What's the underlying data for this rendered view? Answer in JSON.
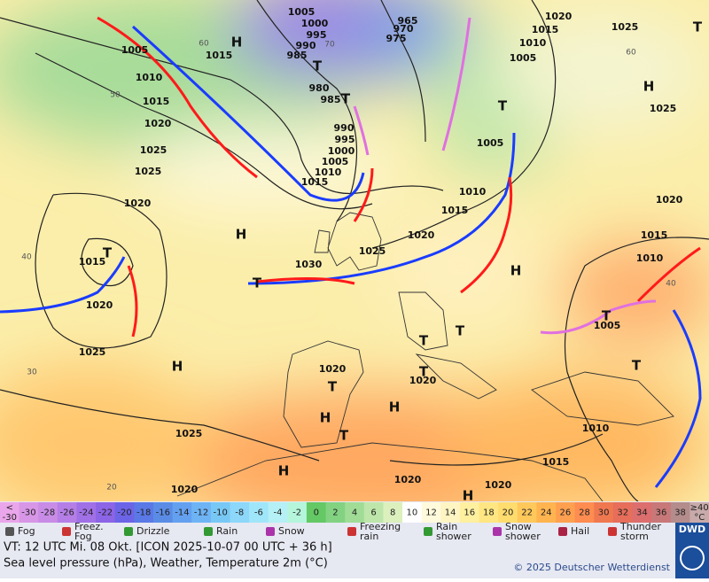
{
  "map": {
    "pressure_labels": [
      1005,
      1000,
      995,
      990,
      985,
      965,
      970,
      975,
      1020,
      1015,
      1025,
      1010,
      1005,
      1005,
      1015,
      1010,
      1015,
      1020,
      1025,
      1025,
      1020,
      980,
      985,
      990,
      995,
      1000,
      1005,
      1010,
      1015,
      1005,
      1010,
      1015,
      1020,
      1025,
      1030,
      1020,
      1015,
      1010,
      1005,
      1015,
      1020,
      1025,
      1020,
      1020,
      1025,
      1010,
      1015,
      1020,
      1020,
      1020,
      1025
    ],
    "centers": [
      "H",
      "T",
      "T",
      "H",
      "H",
      "T",
      "T",
      "T",
      "H",
      "H",
      "T",
      "T",
      "T",
      "T",
      "H",
      "H",
      "T",
      "T",
      "H",
      "H",
      "T",
      "T"
    ],
    "temperature_labels": [
      60,
      50,
      40,
      30,
      20,
      60,
      40,
      70
    ]
  },
  "colorbar": {
    "below_label": [
      "<",
      "-30"
    ],
    "values": [
      -30,
      -28,
      -26,
      -24,
      -22,
      -20,
      -18,
      -16,
      -14,
      -12,
      -10,
      -8,
      -6,
      -4,
      -2,
      0,
      2,
      4,
      6,
      8,
      10,
      12,
      14,
      16,
      18,
      20,
      22,
      24,
      26,
      28,
      30,
      32,
      34,
      36,
      38
    ],
    "above_label": [
      "≥40",
      "°C"
    ],
    "colors": [
      "#eaa6ea",
      "#d896e6",
      "#c88ce6",
      "#b47ee6",
      "#a070e6",
      "#8c64e6",
      "#6c64e6",
      "#5a78e6",
      "#5a8ce6",
      "#64a0f0",
      "#6eb4f5",
      "#78c8f5",
      "#8cd7fa",
      "#a0e6fa",
      "#b4f0f5",
      "#b4f5dc",
      "#64c864",
      "#82d282",
      "#a0dc96",
      "#bee6aa",
      "#dcf0be",
      "#ffffff",
      "#fffadc",
      "#fff5c3",
      "#fff0a0",
      "#ffe682",
      "#ffdc6e",
      "#ffc85a",
      "#ffb450",
      "#ffa050",
      "#ff8c50",
      "#f07850",
      "#e66e5a",
      "#dc6e6e",
      "#c87878",
      "#b48c8c",
      "#c8aaaa"
    ]
  },
  "legend": [
    [
      "Fog"
    ],
    [
      "Freez.",
      "Fog"
    ],
    [
      "Drizzle"
    ],
    [
      "Rain"
    ],
    [
      "Snow"
    ],
    [
      "Freezing",
      "rain"
    ],
    [
      "Rain",
      "shower"
    ],
    [
      "Snow",
      "shower"
    ],
    [
      "Hail"
    ],
    [
      "Thunder",
      "storm"
    ]
  ],
  "footer": {
    "valid_time": "VT: 12 UTC Mi.  08 Okt. [ICON 2025-10-07  00 UTC + 36 h]",
    "description": "Sea level pressure (hPa), Weather, Temperature 2m (°C)",
    "copyright": "© 2025 Deutscher Wetterdienst",
    "logo": "DWD"
  }
}
